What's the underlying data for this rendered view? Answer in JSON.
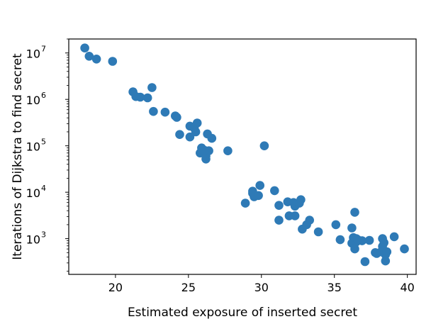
{
  "chart_data": {
    "type": "scatter",
    "xlabel": "Estimated exposure of inserted secret",
    "ylabel": "Iterations of Dijkstra to find secret",
    "xlim": [
      16.8,
      40.6
    ],
    "ylim": [
      170,
      20000000
    ],
    "y_scale": "log",
    "x_ticks": [
      20,
      25,
      30,
      35,
      40
    ],
    "x_tick_labels": [
      "20",
      "25",
      "30",
      "35",
      "40"
    ],
    "y_ticks": [
      1000,
      10000,
      100000,
      1000000,
      10000000
    ],
    "y_tick_labels": [
      {
        "base": "10",
        "exp": "3"
      },
      {
        "base": "10",
        "exp": "4"
      },
      {
        "base": "10",
        "exp": "5"
      },
      {
        "base": "10",
        "exp": "6"
      },
      {
        "base": "10",
        "exp": "7"
      }
    ],
    "grid": false,
    "marker_color": "#2e7ab6",
    "series": [
      {
        "points": [
          [
            17.9,
            12800000
          ],
          [
            18.2,
            8500000
          ],
          [
            18.7,
            7400000
          ],
          [
            19.8,
            6600000
          ],
          [
            21.2,
            1450000
          ],
          [
            21.4,
            1150000
          ],
          [
            21.7,
            1120000
          ],
          [
            22.2,
            1080000
          ],
          [
            22.5,
            1800000
          ],
          [
            22.6,
            550000
          ],
          [
            23.4,
            530000
          ],
          [
            24.1,
            440000
          ],
          [
            24.2,
            410000
          ],
          [
            24.4,
            175000
          ],
          [
            25.1,
            265000
          ],
          [
            25.1,
            155000
          ],
          [
            25.4,
            240000
          ],
          [
            25.5,
            200000
          ],
          [
            25.6,
            310000
          ],
          [
            25.9,
            90000
          ],
          [
            25.8,
            70000
          ],
          [
            26.2,
            60000
          ],
          [
            26.2,
            52000
          ],
          [
            26.4,
            78000
          ],
          [
            26.1,
            80000
          ],
          [
            26.3,
            180000
          ],
          [
            26.6,
            145000
          ],
          [
            27.7,
            78000
          ],
          [
            30.2,
            100000
          ],
          [
            28.9,
            5800.0
          ],
          [
            29.4,
            9500
          ],
          [
            29.4,
            10500
          ],
          [
            29.5,
            8000
          ],
          [
            29.8,
            8500
          ],
          [
            29.9,
            14000
          ],
          [
            30.9,
            10800
          ],
          [
            31.2,
            5200
          ],
          [
            31.2,
            2500
          ],
          [
            31.8,
            6200
          ],
          [
            31.9,
            3100
          ],
          [
            32.2,
            6000
          ],
          [
            32.3,
            5000
          ],
          [
            32.3,
            3100
          ],
          [
            32.6,
            5800
          ],
          [
            32.7,
            6900
          ],
          [
            32.8,
            1600
          ],
          [
            33.1,
            2000
          ],
          [
            33.3,
            2500
          ],
          [
            33.9,
            1400
          ],
          [
            35.1,
            2000
          ],
          [
            35.4,
            950
          ],
          [
            36.2,
            1700
          ],
          [
            36.3,
            1050
          ],
          [
            36.4,
            3700
          ],
          [
            36.2,
            800
          ],
          [
            36.5,
            850
          ],
          [
            36.4,
            600
          ],
          [
            36.5,
            1000
          ],
          [
            36.6,
            950
          ],
          [
            36.9,
            900
          ],
          [
            37.1,
            320
          ],
          [
            37.4,
            920
          ],
          [
            37.8,
            500
          ],
          [
            37.9,
            480
          ],
          [
            38.2,
            520
          ],
          [
            38.3,
            1000
          ],
          [
            38.3,
            680
          ],
          [
            38.4,
            820
          ],
          [
            38.5,
            450
          ],
          [
            38.5,
            330
          ],
          [
            38.6,
            520
          ],
          [
            39.1,
            1100
          ],
          [
            39.8,
            600
          ]
        ]
      }
    ]
  }
}
